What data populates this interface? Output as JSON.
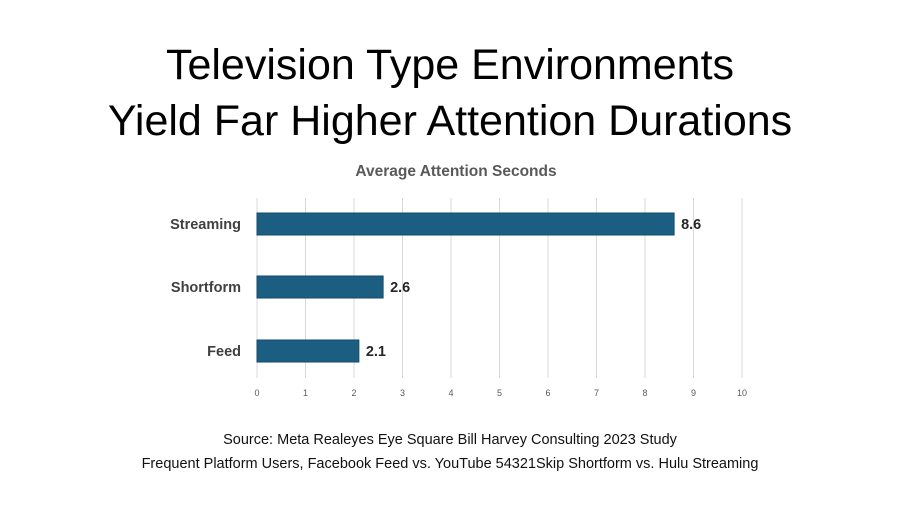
{
  "title_line1": "Television Type Environments",
  "title_line2": "Yield Far Higher Attention Durations",
  "source_line": "Source: Meta Realeyes Eye Square Bill Harvey Consulting 2023 Study",
  "note_line": "Frequent Platform Users, Facebook Feed vs. YouTube 54321Skip Shortform vs. Hulu Streaming",
  "chart_data": {
    "type": "bar",
    "orientation": "horizontal",
    "title": "Average Attention Seconds",
    "categories": [
      "Streaming",
      "Shortform",
      "Feed"
    ],
    "values": [
      8.6,
      2.6,
      2.1
    ],
    "data_labels": [
      "8.6",
      "2.6",
      "2.1"
    ],
    "xlim": [
      0,
      10
    ],
    "x_ticks": [
      "0",
      "1",
      "2",
      "3",
      "4",
      "5",
      "6",
      "7",
      "8",
      "9",
      "10"
    ],
    "xlabel": "",
    "ylabel": "",
    "grid": true,
    "bar_color": "#1b5e82",
    "grid_color": "#d9d9d9"
  }
}
